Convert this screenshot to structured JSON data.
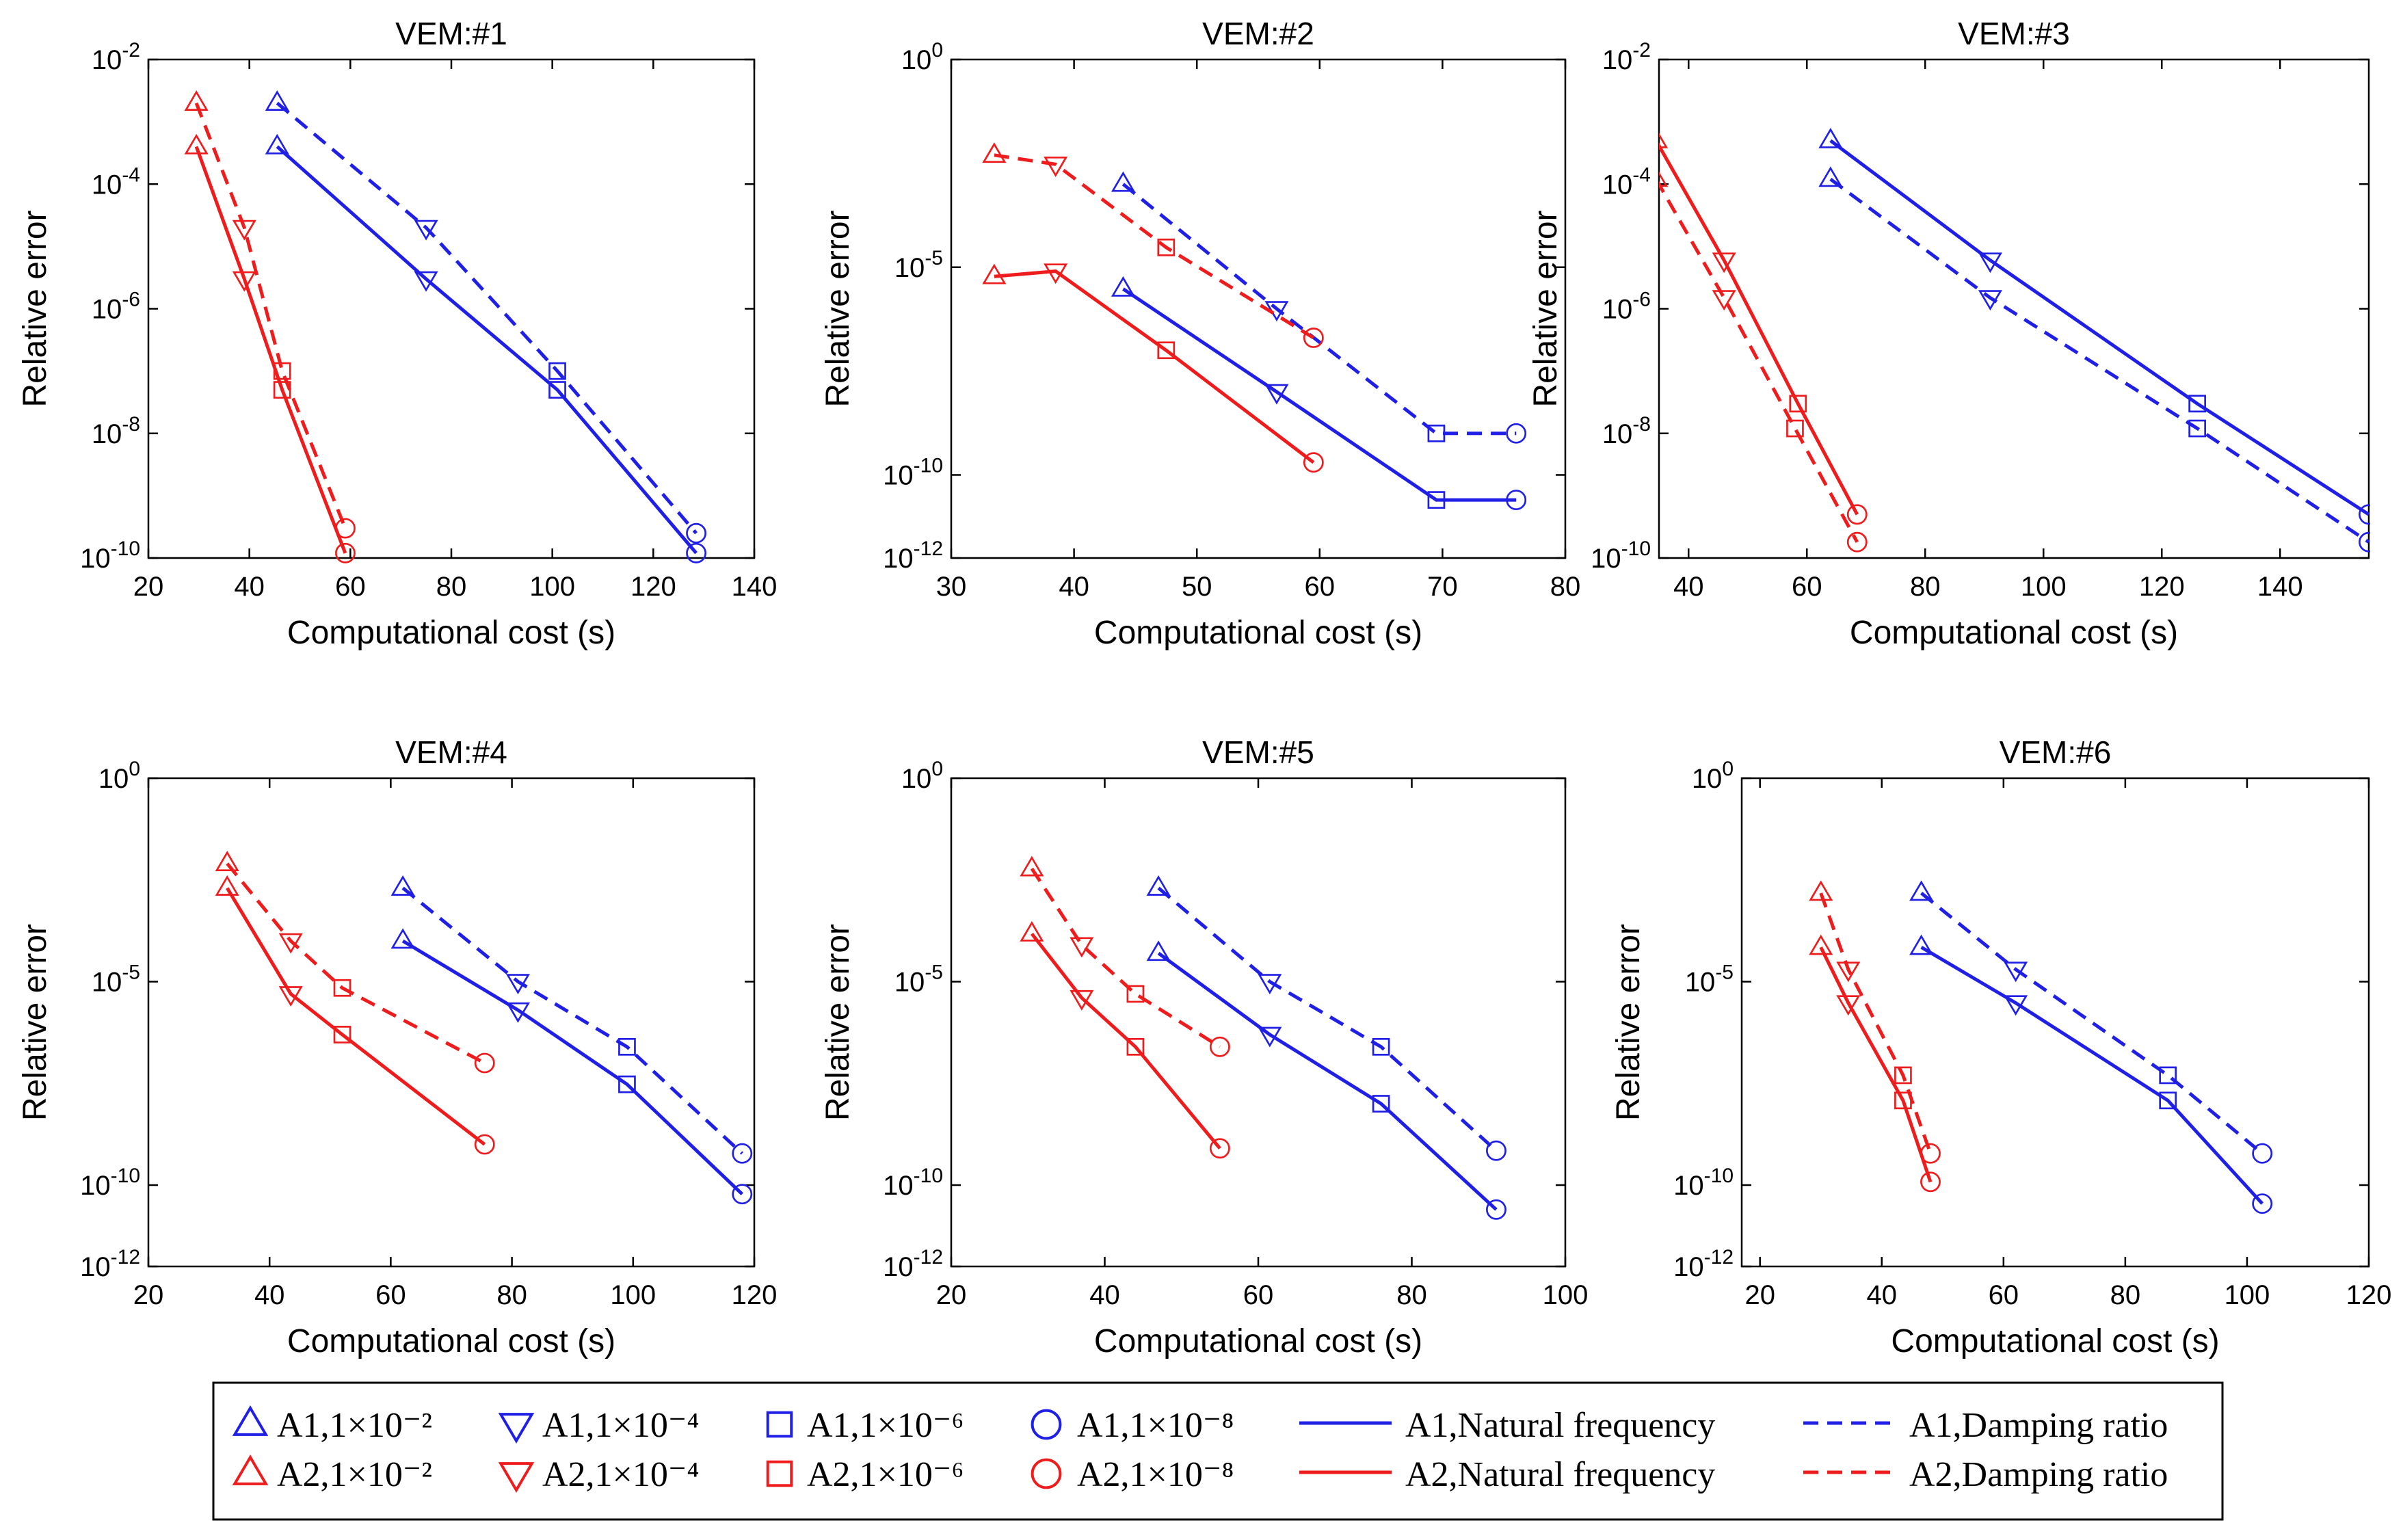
{
  "colors": {
    "A1": "#1f1fe6",
    "A2": "#ee1c1c",
    "axis": "#000000"
  },
  "legend": {
    "markers": [
      {
        "label": "A1,1×10⁻²",
        "model": "A1",
        "marker": "triangle-up"
      },
      {
        "label": "A1,1×10⁻⁴",
        "model": "A1",
        "marker": "triangle-down"
      },
      {
        "label": "A1,1×10⁻⁶",
        "model": "A1",
        "marker": "square"
      },
      {
        "label": "A1,1×10⁻⁸",
        "model": "A1",
        "marker": "circle"
      },
      {
        "label": "A2,1×10⁻²",
        "model": "A2",
        "marker": "triangle-up"
      },
      {
        "label": "A2,1×10⁻⁴",
        "model": "A2",
        "marker": "triangle-down"
      },
      {
        "label": "A2,1×10⁻⁶",
        "model": "A2",
        "marker": "square"
      },
      {
        "label": "A2,1×10⁻⁸",
        "model": "A2",
        "marker": "circle"
      }
    ],
    "lines": [
      {
        "label": "A1,Natural frequency",
        "model": "A1",
        "style": "solid"
      },
      {
        "label": "A1,Damping ratio",
        "model": "A1",
        "style": "dashed"
      },
      {
        "label": "A2,Natural frequency",
        "model": "A2",
        "style": "solid"
      },
      {
        "label": "A2,Damping ratio",
        "model": "A2",
        "style": "dashed"
      }
    ]
  },
  "chart_data": [
    {
      "type": "line",
      "title": "VEM:#1",
      "xlabel": "Computational cost (s)",
      "ylabel": "Relative error",
      "xlim": [
        20,
        140
      ],
      "xticks": [
        20,
        40,
        60,
        80,
        100,
        120,
        140
      ],
      "ylog_range": [
        -10,
        -2
      ],
      "ylog_ticks": [
        -10,
        -8,
        -6,
        -4,
        -2
      ],
      "series": [
        {
          "name": "A1,Natural frequency",
          "model": "A1",
          "style": "solid",
          "x": [
            45.5,
            75,
            101,
            128.5
          ],
          "y": [
            0.0004,
            3e-06,
            5e-08,
            1.2e-10
          ]
        },
        {
          "name": "A1,Damping ratio",
          "model": "A1",
          "style": "dashed",
          "x": [
            45.5,
            75,
            101,
            128.5
          ],
          "y": [
            0.002,
            2e-05,
            1e-07,
            2.5e-10
          ]
        },
        {
          "name": "A2,Natural frequency",
          "model": "A2",
          "style": "solid",
          "x": [
            29.5,
            39,
            46.5,
            59
          ],
          "y": [
            0.0004,
            3e-06,
            5e-08,
            1.2e-10
          ]
        },
        {
          "name": "A2,Damping ratio",
          "model": "A2",
          "style": "dashed",
          "x": [
            29.5,
            39,
            46.5,
            59
          ],
          "y": [
            0.002,
            2e-05,
            1e-07,
            3e-10
          ]
        }
      ]
    },
    {
      "type": "line",
      "title": "VEM:#2",
      "xlabel": "Computational cost (s)",
      "ylabel": "Relative error",
      "xlim": [
        30,
        80
      ],
      "xticks": [
        30,
        40,
        50,
        60,
        70,
        80
      ],
      "ylog_range": [
        -12,
        0
      ],
      "ylog_ticks": [
        -12,
        -10,
        -5,
        0
      ],
      "series": [
        {
          "name": "A1,Natural frequency",
          "model": "A1",
          "style": "solid",
          "x": [
            44,
            56.5,
            69.5,
            76
          ],
          "y": [
            3e-06,
            1e-08,
            2.5e-11,
            2.5e-11
          ]
        },
        {
          "name": "A1,Damping ratio",
          "model": "A1",
          "style": "dashed",
          "x": [
            44,
            56.5,
            69.5,
            76
          ],
          "y": [
            0.001,
            1e-06,
            1e-09,
            1e-09
          ]
        },
        {
          "name": "A2,Natural frequency",
          "model": "A2",
          "style": "solid",
          "x": [
            33.5,
            38.5,
            47.5,
            59.5
          ],
          "y": [
            6e-06,
            8e-06,
            1e-07,
            2e-10
          ]
        },
        {
          "name": "A2,Damping ratio",
          "model": "A2",
          "style": "dashed",
          "x": [
            33.5,
            38.5,
            47.5,
            59.5
          ],
          "y": [
            0.005,
            0.003,
            3e-05,
            2e-07
          ]
        }
      ]
    },
    {
      "type": "line",
      "title": "VEM:#3",
      "xlabel": "Computational cost (s)",
      "ylabel": "Relative error",
      "xlim": [
        35,
        155
      ],
      "xticks": [
        40,
        60,
        80,
        100,
        120,
        140
      ],
      "ylog_range": [
        -10,
        -2
      ],
      "ylog_ticks": [
        -10,
        -8,
        -6,
        -4,
        -2
      ],
      "series": [
        {
          "name": "A1,Natural frequency",
          "model": "A1",
          "style": "solid",
          "x": [
            64,
            91,
            126,
            155
          ],
          "y": [
            0.0005,
            6e-06,
            3e-08,
            5e-10
          ]
        },
        {
          "name": "A1,Damping ratio",
          "model": "A1",
          "style": "dashed",
          "x": [
            64,
            91,
            126,
            155
          ],
          "y": [
            0.00012,
            1.5e-06,
            1.2e-08,
            1.8e-10
          ]
        },
        {
          "name": "A2,Natural frequency",
          "model": "A2",
          "style": "solid",
          "x": [
            34.5,
            46,
            58.5,
            68.5
          ],
          "y": [
            0.0005,
            6e-06,
            3e-08,
            5e-10
          ]
        },
        {
          "name": "A2,Damping ratio",
          "model": "A2",
          "style": "dashed",
          "x": [
            34.5,
            46,
            58,
            68.5
          ],
          "y": [
            0.00012,
            1.5e-06,
            1.2e-08,
            1.8e-10
          ]
        }
      ]
    },
    {
      "type": "line",
      "title": "VEM:#4",
      "xlabel": "Computational cost (s)",
      "ylabel": "Relative error",
      "xlim": [
        20,
        120
      ],
      "xticks": [
        20,
        40,
        60,
        80,
        100,
        120
      ],
      "ylog_range": [
        -12,
        0
      ],
      "ylog_ticks": [
        -12,
        -10,
        -5,
        0
      ],
      "series": [
        {
          "name": "A1,Natural frequency",
          "model": "A1",
          "style": "solid",
          "x": [
            62,
            81,
            99,
            118
          ],
          "y": [
            0.0001,
            2e-06,
            3e-08,
            6e-11
          ]
        },
        {
          "name": "A1,Damping ratio",
          "model": "A1",
          "style": "dashed",
          "x": [
            62,
            81,
            99,
            118
          ],
          "y": [
            0.002,
            1e-05,
            2.5e-07,
            6e-10
          ]
        },
        {
          "name": "A2,Natural frequency",
          "model": "A2",
          "style": "solid",
          "x": [
            33,
            43.5,
            52,
            75.5
          ],
          "y": [
            0.002,
            5e-06,
            5e-07,
            1e-09
          ]
        },
        {
          "name": "A2,Damping ratio",
          "model": "A2",
          "style": "dashed",
          "x": [
            33,
            43.5,
            52,
            75.5
          ],
          "y": [
            0.008,
            0.0001,
            7e-06,
            1e-07
          ]
        }
      ]
    },
    {
      "type": "line",
      "title": "VEM:#5",
      "xlabel": "Computational cost (s)",
      "ylabel": "Relative error",
      "xlim": [
        20,
        100
      ],
      "xticks": [
        20,
        40,
        60,
        80,
        100
      ],
      "ylog_range": [
        -12,
        0
      ],
      "ylog_ticks": [
        -12,
        -10,
        -5,
        0
      ],
      "series": [
        {
          "name": "A1,Natural frequency",
          "model": "A1",
          "style": "solid",
          "x": [
            47,
            61.5,
            76,
            91
          ],
          "y": [
            5e-05,
            5e-07,
            1e-08,
            2.5e-11
          ]
        },
        {
          "name": "A1,Damping ratio",
          "model": "A1",
          "style": "dashed",
          "x": [
            47,
            61.5,
            76,
            91
          ],
          "y": [
            0.002,
            1e-05,
            2.5e-07,
            7e-10
          ]
        },
        {
          "name": "A2,Natural frequency",
          "model": "A2",
          "style": "solid",
          "x": [
            30.5,
            37,
            44,
            55
          ],
          "y": [
            0.00015,
            4e-06,
            2.5e-07,
            8e-10
          ]
        },
        {
          "name": "A2,Damping ratio",
          "model": "A2",
          "style": "dashed",
          "x": [
            30.5,
            37,
            44,
            55
          ],
          "y": [
            0.006,
            8e-05,
            5e-06,
            2.5e-07
          ]
        }
      ]
    },
    {
      "type": "line",
      "title": "VEM:#6",
      "xlabel": "Computational cost (s)",
      "ylabel": "Relative error",
      "xlim": [
        17,
        120
      ],
      "xticks": [
        20,
        40,
        60,
        80,
        100,
        120
      ],
      "ylog_range": [
        -12,
        0
      ],
      "ylog_ticks": [
        -12,
        -10,
        -5,
        0
      ],
      "series": [
        {
          "name": "A1,Natural frequency",
          "model": "A1",
          "style": "solid",
          "x": [
            46.5,
            62,
            87,
            102.5
          ],
          "y": [
            7e-05,
            3e-06,
            1.2e-08,
            3.5e-11
          ]
        },
        {
          "name": "A1,Damping ratio",
          "model": "A1",
          "style": "dashed",
          "x": [
            46.5,
            62,
            87,
            102.5
          ],
          "y": [
            0.0015,
            2e-05,
            5e-08,
            6e-10
          ]
        },
        {
          "name": "A2,Natural frequency",
          "model": "A2",
          "style": "solid",
          "x": [
            30,
            34.5,
            43.5,
            48
          ],
          "y": [
            7e-05,
            3e-06,
            1.2e-08,
            1.2e-10
          ]
        },
        {
          "name": "A2,Damping ratio",
          "model": "A2",
          "style": "dashed",
          "x": [
            30,
            34.5,
            43.5,
            48
          ],
          "y": [
            0.0015,
            2e-05,
            5e-08,
            6e-10
          ]
        }
      ]
    }
  ]
}
